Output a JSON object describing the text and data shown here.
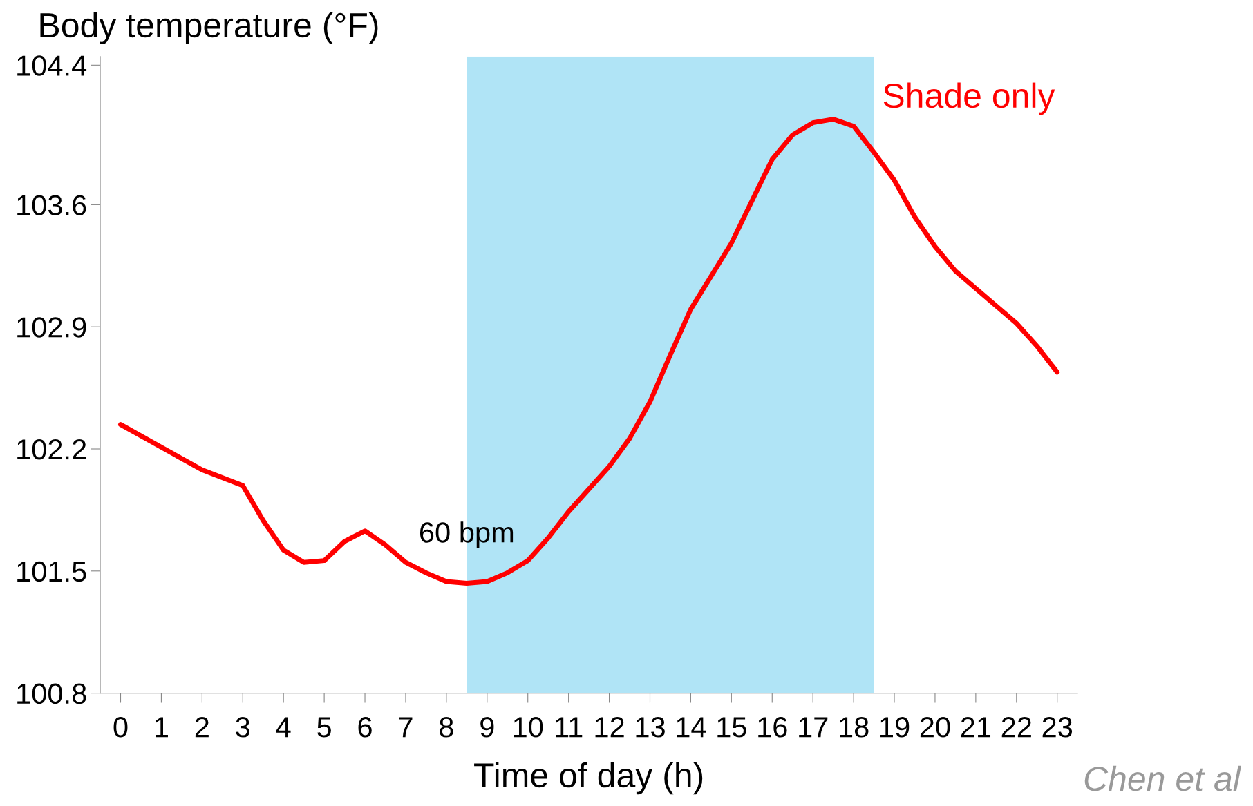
{
  "chart_data": {
    "type": "line",
    "ylabel": "Body temperature (°F)",
    "xlabel": "Time of day (h)",
    "x": [
      0,
      1,
      2,
      3,
      3.5,
      4,
      4.5,
      5,
      5.5,
      6,
      6.5,
      7,
      7.5,
      8,
      8.5,
      9,
      9.5,
      10,
      10.5,
      11,
      11.5,
      12,
      12.5,
      13,
      13.5,
      14,
      14.5,
      15,
      15.5,
      16,
      16.5,
      17,
      17.5,
      18,
      18.5,
      19,
      19.5,
      20,
      20.5,
      21,
      21.5,
      22,
      22.5,
      23
    ],
    "series": [
      {
        "color": "#ff0000",
        "values": [
          102.34,
          102.21,
          102.08,
          101.99,
          101.79,
          101.62,
          101.55,
          101.56,
          101.67,
          101.73,
          101.65,
          101.55,
          101.49,
          101.44,
          101.43,
          101.44,
          101.49,
          101.56,
          101.69,
          101.84,
          101.97,
          102.1,
          102.26,
          102.47,
          102.74,
          103.0,
          103.19,
          103.38,
          103.62,
          103.86,
          104.0,
          104.07,
          104.09,
          104.05,
          103.9,
          103.74,
          103.53,
          103.36,
          103.22,
          103.12,
          103.02,
          102.92,
          102.79,
          102.64
        ]
      }
    ],
    "xlim": [
      -0.5,
      23.5
    ],
    "ylim": [
      100.8,
      104.45
    ],
    "xticks": [
      0,
      1,
      2,
      3,
      4,
      5,
      6,
      7,
      8,
      9,
      10,
      11,
      12,
      13,
      14,
      15,
      16,
      17,
      18,
      19,
      20,
      21,
      22,
      23
    ],
    "yticks": [
      100.8,
      101.5,
      102.2,
      102.9,
      103.6,
      104.4
    ],
    "bands": [
      {
        "axis": "x",
        "from": 8.5,
        "to": 18.5,
        "label": "Shade only",
        "color": "#b0e4f6"
      }
    ],
    "annotations": [
      {
        "text": "60 bpm",
        "x": 8.5,
        "y": 101.43
      },
      "Chen et al"
    ],
    "grid": false,
    "legend": false,
    "marker": "none",
    "line_style": "solid"
  }
}
